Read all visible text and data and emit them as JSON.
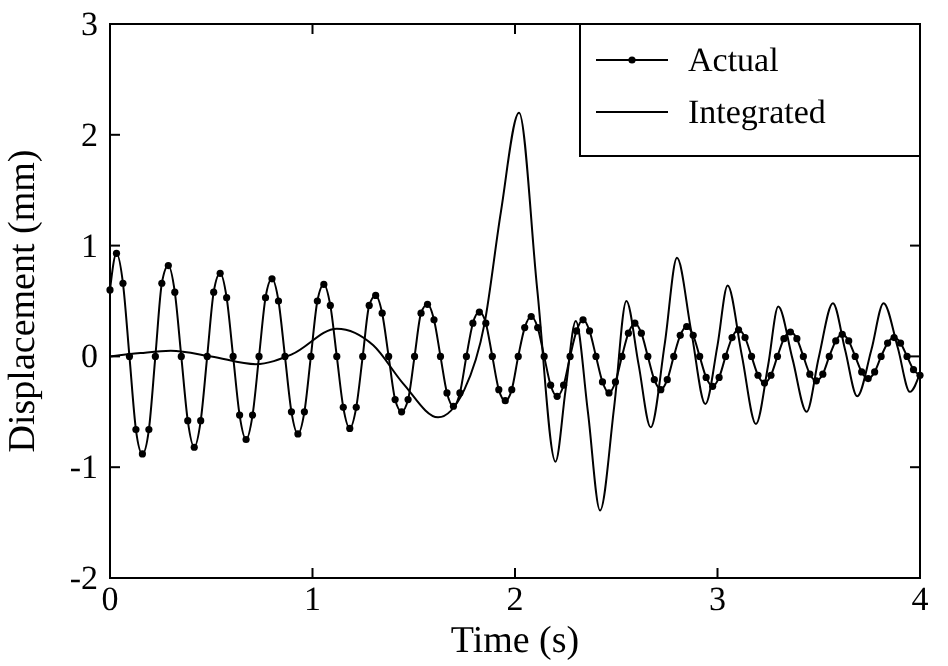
{
  "chart_data": {
    "type": "line",
    "xlabel": "Time (s)",
    "ylabel": "Displacement (mm)",
    "xlim": [
      0,
      4
    ],
    "ylim": [
      -2,
      3
    ],
    "xticks": [
      0,
      1,
      2,
      3,
      4
    ],
    "yticks": [
      -2,
      -1,
      0,
      1,
      2,
      3
    ],
    "grid": false,
    "legend": "top right",
    "series": [
      {
        "name": "Actual",
        "color": "#000000",
        "marker": "circle",
        "x": [
          0,
          0.032,
          0.064,
          0.096,
          0.128,
          0.16,
          0.192,
          0.224,
          0.256,
          0.288,
          0.32,
          0.352,
          0.384,
          0.416,
          0.448,
          0.48,
          0.512,
          0.544,
          0.576,
          0.608,
          0.64,
          0.672,
          0.704,
          0.736,
          0.768,
          0.8,
          0.832,
          0.864,
          0.896,
          0.928,
          0.96,
          0.992,
          1.024,
          1.056,
          1.088,
          1.12,
          1.152,
          1.184,
          1.216,
          1.248,
          1.28,
          1.312,
          1.344,
          1.376,
          1.408,
          1.44,
          1.472,
          1.504,
          1.536,
          1.568,
          1.6,
          1.632,
          1.664,
          1.696,
          1.728,
          1.76,
          1.792,
          1.824,
          1.856,
          1.888,
          1.92,
          1.952,
          1.984,
          2.016,
          2.048,
          2.08,
          2.112,
          2.144,
          2.176,
          2.208,
          2.24,
          2.272,
          2.304,
          2.336,
          2.368,
          2.4,
          2.432,
          2.464,
          2.496,
          2.528,
          2.56,
          2.592,
          2.624,
          2.656,
          2.688,
          2.72,
          2.752,
          2.784,
          2.816,
          2.848,
          2.88,
          2.912,
          2.944,
          2.976,
          3.008,
          3.04,
          3.072,
          3.104,
          3.136,
          3.168,
          3.2,
          3.232,
          3.264,
          3.296,
          3.328,
          3.36,
          3.392,
          3.424,
          3.456,
          3.488,
          3.52,
          3.552,
          3.584,
          3.616,
          3.648,
          3.68,
          3.712,
          3.744,
          3.776,
          3.808,
          3.84,
          3.872,
          3.904,
          3.936,
          3.968,
          4.0
        ],
        "values": [
          0.6,
          0.93,
          0.66,
          0,
          -0.66,
          -0.88,
          -0.66,
          0,
          0.66,
          0.82,
          0.58,
          0,
          -0.58,
          -0.82,
          -0.58,
          0,
          0.58,
          0.75,
          0.53,
          0,
          -0.53,
          -0.75,
          -0.53,
          0,
          0.53,
          0.7,
          0.5,
          0,
          -0.5,
          -0.7,
          -0.5,
          0,
          0.5,
          0.65,
          0.46,
          0,
          -0.46,
          -0.65,
          -0.46,
          0,
          0.46,
          0.55,
          0.39,
          0,
          -0.39,
          -0.5,
          -0.39,
          0,
          0.39,
          0.47,
          0.33,
          0,
          -0.33,
          -0.45,
          -0.33,
          0,
          0.3,
          0.4,
          0.3,
          0,
          -0.3,
          -0.4,
          -0.3,
          0,
          0.26,
          0.36,
          0.26,
          0,
          -0.26,
          -0.36,
          -0.26,
          0,
          0.23,
          0.33,
          0.23,
          0,
          -0.23,
          -0.33,
          -0.23,
          0,
          0.21,
          0.3,
          0.21,
          0,
          -0.21,
          -0.3,
          -0.21,
          0,
          0.19,
          0.27,
          0.19,
          0,
          -0.19,
          -0.27,
          -0.19,
          0,
          0.17,
          0.24,
          0.17,
          0,
          -0.17,
          -0.24,
          -0.17,
          0,
          0.16,
          0.22,
          0.16,
          0,
          -0.16,
          -0.22,
          -0.16,
          0,
          0.14,
          0.2,
          0.14,
          0,
          -0.14,
          -0.2,
          -0.14,
          0,
          0.12,
          0.17,
          0.12,
          0,
          -0.12,
          -0.17
        ]
      },
      {
        "name": "Integrated",
        "color": "#000000",
        "marker": "none",
        "x": [
          0,
          0.15,
          0.3,
          0.5,
          0.72,
          0.9,
          1.12,
          1.3,
          1.45,
          1.62,
          1.75,
          1.85,
          1.93,
          2.02,
          2.11,
          2.2,
          2.25,
          2.3,
          2.36,
          2.42,
          2.49,
          2.55,
          2.61,
          2.67,
          2.74,
          2.8,
          2.87,
          2.94,
          3.0,
          3.05,
          3.12,
          3.19,
          3.25,
          3.3,
          3.37,
          3.44,
          3.5,
          3.57,
          3.63,
          3.69,
          3.76,
          3.82,
          3.89,
          3.95,
          4.0
        ],
        "values": [
          0,
          0.03,
          0.05,
          0,
          -0.07,
          0.02,
          0.25,
          0.1,
          -0.25,
          -0.55,
          -0.3,
          0.3,
          1.3,
          2.2,
          0.6,
          -0.95,
          -0.3,
          0.32,
          -0.5,
          -1.39,
          -0.45,
          0.5,
          -0.07,
          -0.64,
          0.12,
          0.89,
          0.23,
          -0.43,
          0.1,
          0.64,
          0.01,
          -0.61,
          -0.08,
          0.45,
          -0.02,
          -0.5,
          -0.01,
          0.48,
          0.06,
          -0.36,
          0.06,
          0.48,
          0.08,
          -0.32,
          -0.15
        ]
      }
    ]
  }
}
